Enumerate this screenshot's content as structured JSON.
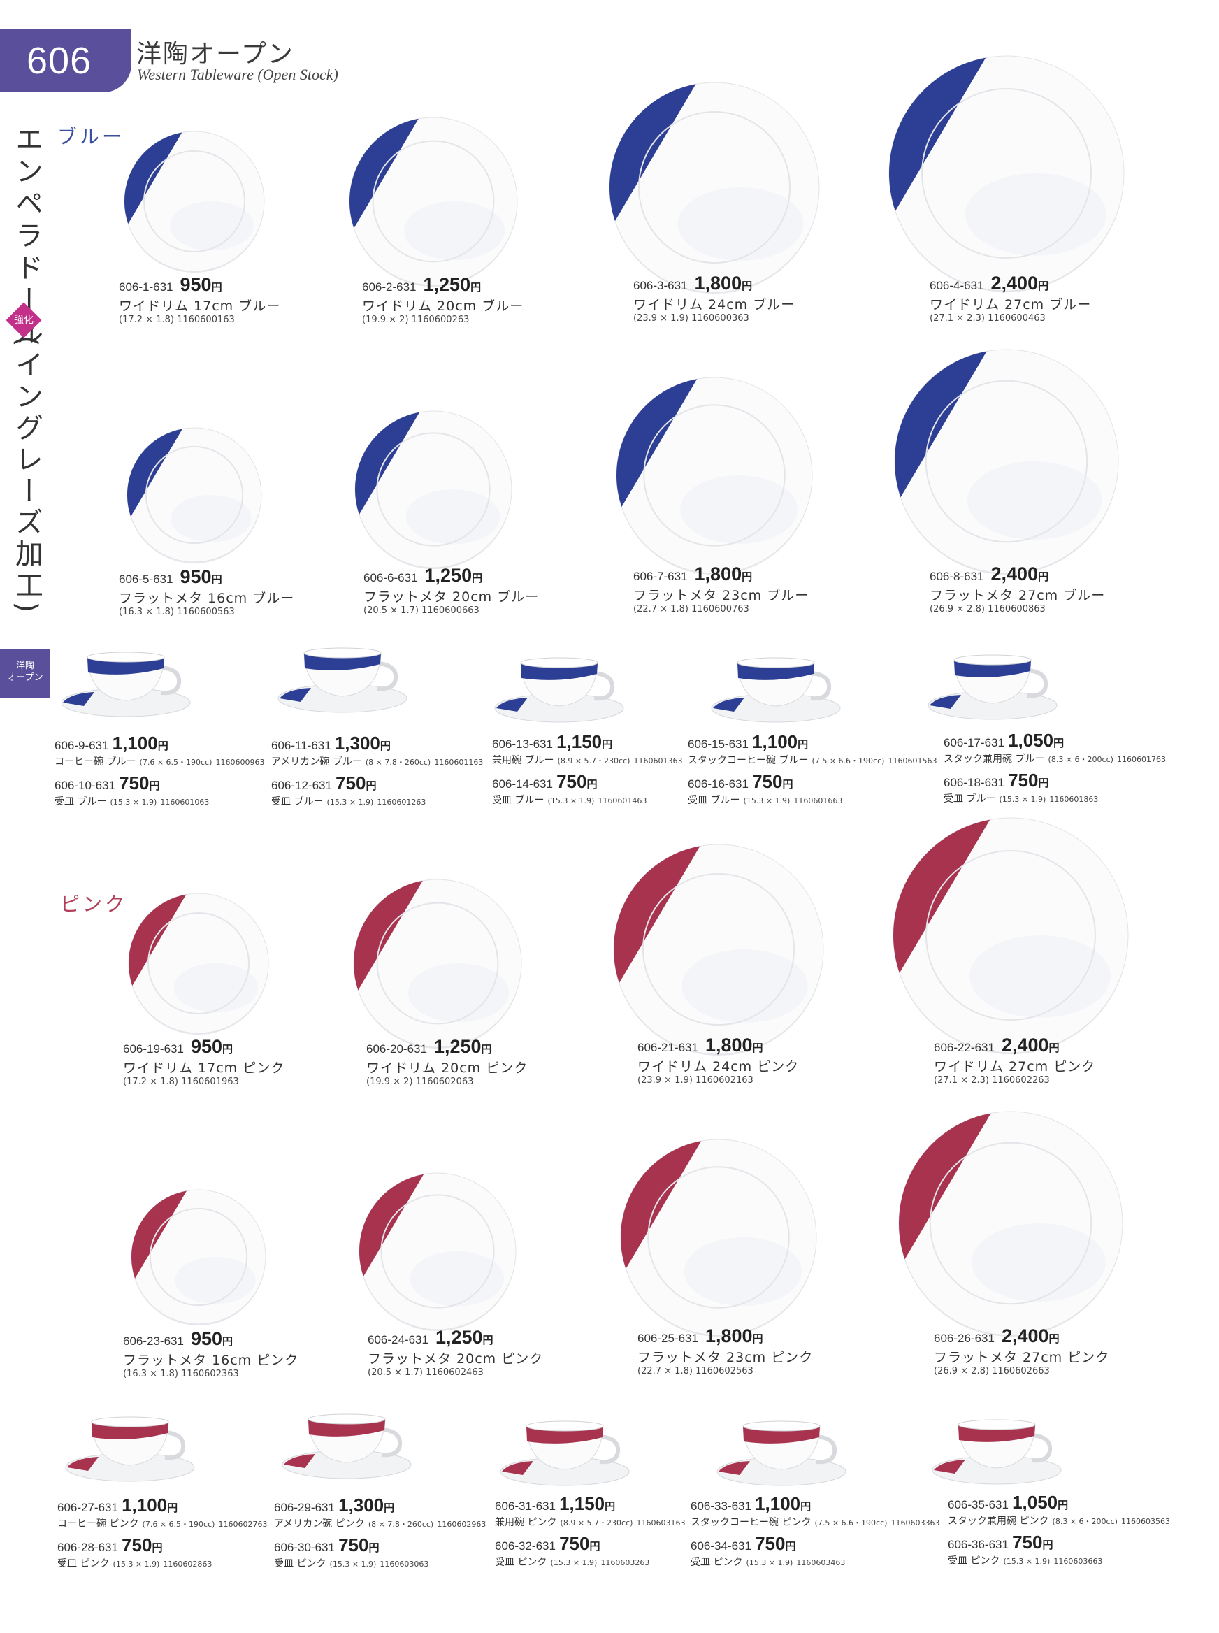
{
  "header": {
    "page_number": "606",
    "title_jp": "洋陶オープン",
    "title_en": "Western Tableware (Open Stock)"
  },
  "series_name": "エンペラドール",
  "series_sub": "(イングレーズ加工)",
  "badge": "強化",
  "side_tab": "洋陶\nオープン",
  "colors": {
    "blue": "#2d3f94",
    "pink": "#a8334e",
    "accent": "#5a4f9a"
  },
  "sections": {
    "blue": "ブルー",
    "pink": "ピンク"
  },
  "blue_plates": [
    {
      "code": "606-1-631",
      "price": "950",
      "yen": "円",
      "name": "ワイドリム 17cm ブルー",
      "dims": "(17.2 × 1.8)",
      "jan": "1160600163"
    },
    {
      "code": "606-2-631",
      "price": "1,250",
      "yen": "円",
      "name": "ワイドリム 20cm ブルー",
      "dims": "(19.9 × 2)",
      "jan": "1160600263"
    },
    {
      "code": "606-3-631",
      "price": "1,800",
      "yen": "円",
      "name": "ワイドリム 24cm ブルー",
      "dims": "(23.9 × 1.9)",
      "jan": "1160600363"
    },
    {
      "code": "606-4-631",
      "price": "2,400",
      "yen": "円",
      "name": "ワイドリム 27cm ブルー",
      "dims": "(27.1 × 2.3)",
      "jan": "1160600463"
    },
    {
      "code": "606-5-631",
      "price": "950",
      "yen": "円",
      "name": "フラットメタ 16cm ブルー",
      "dims": "(16.3 × 1.8)",
      "jan": "1160600563"
    },
    {
      "code": "606-6-631",
      "price": "1,250",
      "yen": "円",
      "name": "フラットメタ 20cm ブルー",
      "dims": "(20.5 × 1.7)",
      "jan": "1160600663"
    },
    {
      "code": "606-7-631",
      "price": "1,800",
      "yen": "円",
      "name": "フラットメタ 23cm ブルー",
      "dims": "(22.7 × 1.8)",
      "jan": "1160600763"
    },
    {
      "code": "606-8-631",
      "price": "2,400",
      "yen": "円",
      "name": "フラットメタ 27cm ブルー",
      "dims": "(26.9 × 2.8)",
      "jan": "1160600863"
    }
  ],
  "blue_cups": [
    {
      "code": "606-9-631",
      "price": "1,100",
      "name": "コーヒー碗 ブルー",
      "dims": "(7.6 × 6.5・190cc)",
      "jan": "1160600963",
      "s_code": "606-10-631",
      "s_price": "750",
      "s_name": "受皿 ブルー",
      "s_dims": "(15.3 × 1.9)",
      "s_jan": "1160601063"
    },
    {
      "code": "606-11-631",
      "price": "1,300",
      "name": "アメリカン碗 ブルー",
      "dims": "(8 × 7.8・260cc)",
      "jan": "1160601163",
      "s_code": "606-12-631",
      "s_price": "750",
      "s_name": "受皿 ブルー",
      "s_dims": "(15.3 × 1.9)",
      "s_jan": "1160601263"
    },
    {
      "code": "606-13-631",
      "price": "1,150",
      "name": "兼用碗 ブルー",
      "dims": "(8.9 × 5.7・230cc)",
      "jan": "1160601363",
      "s_code": "606-14-631",
      "s_price": "750",
      "s_name": "受皿 ブルー",
      "s_dims": "(15.3 × 1.9)",
      "s_jan": "1160601463"
    },
    {
      "code": "606-15-631",
      "price": "1,100",
      "name": "スタックコーヒー碗 ブルー",
      "dims": "(7.5 × 6.6・190cc)",
      "jan": "1160601563",
      "s_code": "606-16-631",
      "s_price": "750",
      "s_name": "受皿 ブルー",
      "s_dims": "(15.3 × 1.9)",
      "s_jan": "1160601663"
    },
    {
      "code": "606-17-631",
      "price": "1,050",
      "name": "スタック兼用碗 ブルー",
      "dims": "(8.3 × 6・200cc)",
      "jan": "1160601763",
      "s_code": "606-18-631",
      "s_price": "750",
      "s_name": "受皿 ブルー",
      "s_dims": "(15.3 × 1.9)",
      "s_jan": "1160601863"
    }
  ],
  "pink_plates": [
    {
      "code": "606-19-631",
      "price": "950",
      "yen": "円",
      "name": "ワイドリム 17cm ピンク",
      "dims": "(17.2 × 1.8)",
      "jan": "1160601963"
    },
    {
      "code": "606-20-631",
      "price": "1,250",
      "yen": "円",
      "name": "ワイドリム 20cm ピンク",
      "dims": "(19.9 × 2)",
      "jan": "1160602063"
    },
    {
      "code": "606-21-631",
      "price": "1,800",
      "yen": "円",
      "name": "ワイドリム 24cm ピンク",
      "dims": "(23.9 × 1.9)",
      "jan": "1160602163"
    },
    {
      "code": "606-22-631",
      "price": "2,400",
      "yen": "円",
      "name": "ワイドリム 27cm ピンク",
      "dims": "(27.1 × 2.3)",
      "jan": "1160602263"
    },
    {
      "code": "606-23-631",
      "price": "950",
      "yen": "円",
      "name": "フラットメタ 16cm ピンク",
      "dims": "(16.3 × 1.8)",
      "jan": "1160602363"
    },
    {
      "code": "606-24-631",
      "price": "1,250",
      "yen": "円",
      "name": "フラットメタ 20cm ピンク",
      "dims": "(20.5 × 1.7)",
      "jan": "1160602463"
    },
    {
      "code": "606-25-631",
      "price": "1,800",
      "yen": "円",
      "name": "フラットメタ 23cm ピンク",
      "dims": "(22.7 × 1.8)",
      "jan": "1160602563"
    },
    {
      "code": "606-26-631",
      "price": "2,400",
      "yen": "円",
      "name": "フラットメタ 27cm ピンク",
      "dims": "(26.9 × 2.8)",
      "jan": "1160602663"
    }
  ],
  "pink_cups": [
    {
      "code": "606-27-631",
      "price": "1,100",
      "name": "コーヒー碗 ピンク",
      "dims": "(7.6 × 6.5・190cc)",
      "jan": "1160602763",
      "s_code": "606-28-631",
      "s_price": "750",
      "s_name": "受皿 ピンク",
      "s_dims": "(15.3 × 1.9)",
      "s_jan": "1160602863"
    },
    {
      "code": "606-29-631",
      "price": "1,300",
      "name": "アメリカン碗 ピンク",
      "dims": "(8 × 7.8・260cc)",
      "jan": "1160602963",
      "s_code": "606-30-631",
      "s_price": "750",
      "s_name": "受皿 ピンク",
      "s_dims": "(15.3 × 1.9)",
      "s_jan": "1160603063"
    },
    {
      "code": "606-31-631",
      "price": "1,150",
      "name": "兼用碗 ピンク",
      "dims": "(8.9 × 5.7・230cc)",
      "jan": "1160603163",
      "s_code": "606-32-631",
      "s_price": "750",
      "s_name": "受皿 ピンク",
      "s_dims": "(15.3 × 1.9)",
      "s_jan": "1160603263"
    },
    {
      "code": "606-33-631",
      "price": "1,100",
      "name": "スタックコーヒー碗 ピンク",
      "dims": "(7.5 × 6.6・190cc)",
      "jan": "1160603363",
      "s_code": "606-34-631",
      "s_price": "750",
      "s_name": "受皿 ピンク",
      "s_dims": "(15.3 × 1.9)",
      "s_jan": "1160603463"
    },
    {
      "code": "606-35-631",
      "price": "1,050",
      "name": "スタック兼用碗 ピンク",
      "dims": "(8.3 × 6・200cc)",
      "jan": "1160603563",
      "s_code": "606-36-631",
      "s_price": "750",
      "s_name": "受皿 ピンク",
      "s_dims": "(15.3 × 1.9)",
      "s_jan": "1160603663"
    }
  ]
}
